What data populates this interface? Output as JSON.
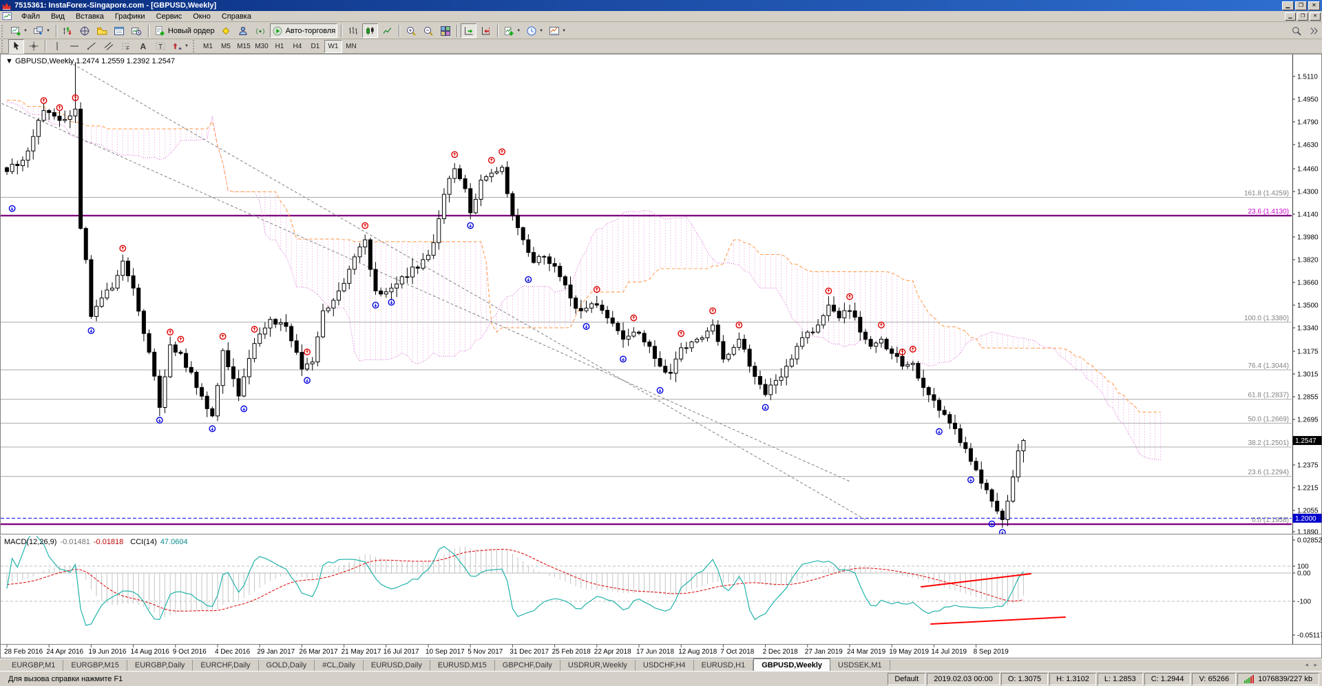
{
  "window": {
    "title": "7515361: InstaForex-Singapore.com - [GBPUSD,Weekly]",
    "buttons": [
      "minimize",
      "restore",
      "close"
    ]
  },
  "menu": {
    "items": [
      "Файл",
      "Вид",
      "Вставка",
      "Графики",
      "Сервис",
      "Окно",
      "Справка"
    ],
    "child_buttons": [
      "minimize",
      "restore",
      "close"
    ]
  },
  "toolbar_main": {
    "new_order_label": "Новый ордер",
    "auto_trading_label": "Авто-торговля",
    "items": [
      {
        "type": "grip"
      },
      {
        "type": "button",
        "name": "new-chart",
        "icon": "new-chart",
        "dropdown": true
      },
      {
        "type": "button",
        "name": "profiles",
        "icon": "profiles",
        "dropdown": true
      },
      {
        "type": "sep"
      },
      {
        "type": "button",
        "name": "market-watch",
        "icon": "market-watch"
      },
      {
        "type": "button",
        "name": "data-window",
        "icon": "data-window"
      },
      {
        "type": "button",
        "name": "navigator",
        "icon": "navigator"
      },
      {
        "type": "button",
        "name": "terminal",
        "icon": "terminal"
      },
      {
        "type": "button",
        "name": "strategy-tester",
        "icon": "tester"
      },
      {
        "type": "sep"
      },
      {
        "type": "button",
        "name": "new-order",
        "icon": "new-order",
        "label": "Новый ордер"
      },
      {
        "type": "button",
        "name": "metaeditor",
        "icon": "metaeditor"
      },
      {
        "type": "button",
        "name": "expert-advisors",
        "icon": "expert"
      },
      {
        "type": "button",
        "name": "signals",
        "icon": "signal"
      },
      {
        "type": "button",
        "name": "auto-trading",
        "icon": "autotrade",
        "label": "Авто-торговля",
        "pressed": true
      },
      {
        "type": "sep"
      },
      {
        "type": "button",
        "name": "bar-chart-mode",
        "icon": "bars"
      },
      {
        "type": "button",
        "name": "candlestick-mode",
        "icon": "candles",
        "pressed": true
      },
      {
        "type": "button",
        "name": "line-chart-mode",
        "icon": "line"
      },
      {
        "type": "sep"
      },
      {
        "type": "button",
        "name": "zoom-in",
        "icon": "zoom-in"
      },
      {
        "type": "button",
        "name": "zoom-out",
        "icon": "zoom-out"
      },
      {
        "type": "button",
        "name": "tile-windows",
        "icon": "tile"
      },
      {
        "type": "sep"
      },
      {
        "type": "button",
        "name": "auto-scroll",
        "icon": "autoscroll",
        "pressed": true
      },
      {
        "type": "button",
        "name": "chart-shift",
        "icon": "shift"
      },
      {
        "type": "sep"
      },
      {
        "type": "button",
        "name": "indicators-list",
        "icon": "indicators",
        "dropdown": true
      },
      {
        "type": "button",
        "name": "periods-list",
        "icon": "periods",
        "dropdown": true
      },
      {
        "type": "button",
        "name": "templates",
        "icon": "template",
        "dropdown": true
      },
      {
        "type": "spacer"
      },
      {
        "type": "button",
        "name": "search",
        "icon": "search"
      },
      {
        "type": "button",
        "name": "toolbar-overflow",
        "icon": "chevrons"
      }
    ]
  },
  "toolbar_drawing": {
    "items": [
      {
        "type": "grip"
      },
      {
        "type": "button",
        "name": "cursor",
        "icon": "cursor",
        "pressed": true
      },
      {
        "type": "button",
        "name": "crosshair",
        "icon": "crosshair"
      },
      {
        "type": "sep"
      },
      {
        "type": "button",
        "name": "vertical-line",
        "icon": "vline"
      },
      {
        "type": "button",
        "name": "horizontal-line",
        "icon": "hline"
      },
      {
        "type": "button",
        "name": "trendline",
        "icon": "trendline"
      },
      {
        "type": "button",
        "name": "equidistant-channel",
        "icon": "channel"
      },
      {
        "type": "button",
        "name": "fibonacci-retracement",
        "icon": "fibo"
      },
      {
        "type": "button",
        "name": "text",
        "icon": "text"
      },
      {
        "type": "button",
        "name": "text-label",
        "icon": "label"
      },
      {
        "type": "button",
        "name": "arrow-objects",
        "icon": "arrows",
        "dropdown": true
      },
      {
        "type": "grip"
      }
    ],
    "timeframes": [
      "M1",
      "M5",
      "M15",
      "M30",
      "H1",
      "H4",
      "D1",
      "W1",
      "MN"
    ],
    "active_timeframe": "W1"
  },
  "chart": {
    "symbol_label": "GBPUSD,Weekly",
    "ohlc_text": "1.2474 1.2559 1.2392 1.2547",
    "price_axis": {
      "ticks": [
        "1.5110",
        "1.4950",
        "1.4790",
        "1.4630",
        "1.4460",
        "1.4300",
        "1.4140",
        "1.3980",
        "1.3820",
        "1.3660",
        "1.3500",
        "1.3340",
        "1.3175",
        "1.3015",
        "1.2855",
        "1.2695",
        "1.2375",
        "1.2215",
        "1.2055",
        "1.1890"
      ],
      "tick_values": [
        1.511,
        1.495,
        1.479,
        1.463,
        1.446,
        1.43,
        1.414,
        1.398,
        1.382,
        1.366,
        1.35,
        1.334,
        1.3175,
        1.3015,
        1.2855,
        1.2695,
        1.2375,
        1.2215,
        1.2055,
        1.189
      ],
      "current_price_badge": {
        "value": "1.2547",
        "price": 1.2547,
        "bg": "#000000",
        "fg": "#ffffff"
      },
      "level_badge": {
        "value": "1.2000",
        "price": 1.2,
        "bg": "#0000CC",
        "fg": "#ffffff"
      }
    },
    "fib_levels": [
      {
        "label": "161.8 (1.4259)",
        "price": 1.4259,
        "kind": "gray"
      },
      {
        "label": "23.6 (1.4130)",
        "price": 1.413,
        "kind": "purple",
        "label_color": "#CC00CC"
      },
      {
        "label": "100.0 (1.3380)",
        "price": 1.338,
        "kind": "gray"
      },
      {
        "label": "76.4 (1.3044)",
        "price": 1.3044,
        "kind": "gray"
      },
      {
        "label": "61.8 (1.2837)",
        "price": 1.2837,
        "kind": "gray"
      },
      {
        "label": "50.0 (1.2669)",
        "price": 1.2669,
        "kind": "gray"
      },
      {
        "label": "38.2 (1.2501)",
        "price": 1.2501,
        "kind": "gray"
      },
      {
        "label": "23.6 (1.2294)",
        "price": 1.2294,
        "kind": "gray"
      },
      {
        "label": "0.0 (1.1958)",
        "price": 1.1958,
        "kind": "purple",
        "label_color": "#808080"
      }
    ],
    "blue_level_line": {
      "price": 1.2,
      "color": "#0000EE",
      "style": "dashed"
    },
    "date_axis": [
      "28 Feb 2016",
      "24 Apr 2016",
      "19 Jun 2016",
      "14 Aug 2016",
      "9 Oct 2016",
      "4 Dec 2016",
      "29 Jan 2017",
      "26 Mar 2017",
      "21 May 2017",
      "16 Jul 2017",
      "10 Sep 2017",
      "5 Nov 2017",
      "31 Dec 2017",
      "25 Feb 2018",
      "22 Apr 2018",
      "17 Jun 2018",
      "12 Aug 2018",
      "7 Oct 2018",
      "2 Dec 2018",
      "27 Jan 2019",
      "24 Mar 2019",
      "19 May 2019",
      "14 Jul 2019",
      "8 Sep 2019"
    ],
    "chart_data": {
      "type": "candlestick",
      "symbol": "GBPUSD",
      "timeframe": "Weekly",
      "ylim": [
        1.186,
        1.525
      ],
      "ohlc_current": {
        "open": 1.2474,
        "high": 1.2559,
        "low": 1.2392,
        "close": 1.2547
      },
      "weeks": 194,
      "pre_anchors": [
        [
          -60,
          1.508
        ],
        [
          -50,
          1.478
        ],
        [
          -42,
          1.496
        ],
        [
          -34,
          1.505
        ],
        [
          -26,
          1.482
        ],
        [
          -18,
          1.462
        ],
        [
          -10,
          1.44
        ],
        [
          -5,
          1.448
        ]
      ],
      "anchors": [
        [
          0,
          1.444
        ],
        [
          3,
          1.452
        ],
        [
          7,
          1.487
        ],
        [
          10,
          1.48
        ],
        [
          13,
          1.488
        ],
        [
          14,
          1.404
        ],
        [
          15,
          1.382
        ],
        [
          16,
          1.342
        ],
        [
          18,
          1.355
        ],
        [
          20,
          1.362
        ],
        [
          22,
          1.381
        ],
        [
          24,
          1.362
        ],
        [
          26,
          1.33
        ],
        [
          28,
          1.3
        ],
        [
          29,
          1.278
        ],
        [
          31,
          1.322
        ],
        [
          33,
          1.316
        ],
        [
          36,
          1.292
        ],
        [
          39,
          1.272
        ],
        [
          41,
          1.318
        ],
        [
          44,
          1.286
        ],
        [
          47,
          1.323
        ],
        [
          50,
          1.34
        ],
        [
          53,
          1.335
        ],
        [
          56,
          1.305
        ],
        [
          58,
          1.31
        ],
        [
          60,
          1.346
        ],
        [
          63,
          1.36
        ],
        [
          66,
          1.384
        ],
        [
          68,
          1.396
        ],
        [
          70,
          1.36
        ],
        [
          73,
          1.362
        ],
        [
          75,
          1.37
        ],
        [
          78,
          1.376
        ],
        [
          81,
          1.394
        ],
        [
          83,
          1.428
        ],
        [
          85,
          1.446
        ],
        [
          87,
          1.432
        ],
        [
          88,
          1.415
        ],
        [
          90,
          1.438
        ],
        [
          92,
          1.443
        ],
        [
          94,
          1.447
        ],
        [
          96,
          1.413
        ],
        [
          98,
          1.396
        ],
        [
          100,
          1.38
        ],
        [
          102,
          1.384
        ],
        [
          105,
          1.37
        ],
        [
          107,
          1.355
        ],
        [
          109,
          1.346
        ],
        [
          112,
          1.35
        ],
        [
          114,
          1.341
        ],
        [
          117,
          1.326
        ],
        [
          119,
          1.331
        ],
        [
          122,
          1.321
        ],
        [
          124,
          1.307
        ],
        [
          126,
          1.302
        ],
        [
          128,
          1.32
        ],
        [
          131,
          1.326
        ],
        [
          134,
          1.336
        ],
        [
          136,
          1.312
        ],
        [
          139,
          1.326
        ],
        [
          141,
          1.307
        ],
        [
          144,
          1.287
        ],
        [
          146,
          1.297
        ],
        [
          148,
          1.307
        ],
        [
          150,
          1.321
        ],
        [
          152,
          1.331
        ],
        [
          154,
          1.336
        ],
        [
          156,
          1.35
        ],
        [
          158,
          1.341
        ],
        [
          160,
          1.346
        ],
        [
          162,
          1.331
        ],
        [
          164,
          1.321
        ],
        [
          166,
          1.326
        ],
        [
          168,
          1.316
        ],
        [
          170,
          1.307
        ],
        [
          172,
          1.309
        ],
        [
          174,
          1.292
        ],
        [
          176,
          1.283
        ],
        [
          178,
          1.273
        ],
        [
          180,
          1.263
        ],
        [
          182,
          1.249
        ],
        [
          184,
          1.234
        ],
        [
          186,
          1.22
        ],
        [
          187,
          1.212
        ],
        [
          188,
          1.205
        ],
        [
          189,
          1.199
        ],
        [
          190,
          1.212
        ],
        [
          191,
          1.229
        ],
        [
          192,
          1.2474
        ],
        [
          193,
          1.2547
        ]
      ],
      "signals": {
        "sell": [
          [
            7,
            1.494
          ],
          [
            10,
            1.489
          ],
          [
            13,
            1.496
          ],
          [
            22,
            1.39
          ],
          [
            31,
            1.331
          ],
          [
            33,
            1.326
          ],
          [
            41,
            1.328
          ],
          [
            47,
            1.333
          ],
          [
            57,
            1.317
          ],
          [
            68,
            1.406
          ],
          [
            85,
            1.456
          ],
          [
            92,
            1.452
          ],
          [
            94,
            1.458
          ],
          [
            112,
            1.361
          ],
          [
            119,
            1.341
          ],
          [
            128,
            1.33
          ],
          [
            134,
            1.346
          ],
          [
            139,
            1.336
          ],
          [
            156,
            1.36
          ],
          [
            160,
            1.356
          ],
          [
            166,
            1.336
          ],
          [
            170,
            1.317
          ],
          [
            172,
            1.319
          ]
        ],
        "buy": [
          [
            1,
            1.418
          ],
          [
            16,
            1.332
          ],
          [
            29,
            1.269
          ],
          [
            39,
            1.263
          ],
          [
            45,
            1.277
          ],
          [
            57,
            1.297
          ],
          [
            70,
            1.35
          ],
          [
            73,
            1.352
          ],
          [
            88,
            1.406
          ],
          [
            99,
            1.368
          ],
          [
            110,
            1.335
          ],
          [
            117,
            1.312
          ],
          [
            124,
            1.29
          ],
          [
            144,
            1.278
          ],
          [
            177,
            1.261
          ],
          [
            183,
            1.227
          ],
          [
            187,
            1.196
          ],
          [
            189,
            1.19
          ]
        ]
      },
      "trendlines": [
        [
          -1,
          1.492,
          160,
          1.226
        ],
        [
          11,
          1.523,
          163,
          1.199
        ]
      ],
      "indicators": {
        "ichimoku_params": "9, 26, 52",
        "macd_params": [
          12,
          26,
          9
        ],
        "cci_period": 14
      }
    }
  },
  "indicator_panel": {
    "macd_name": "MACD(12,26,9)",
    "macd_value": "-0.01481",
    "signal_value": "-0.01818",
    "cci_name": "CCI(14)",
    "cci_value": "47.0604",
    "axis": {
      "top": "0.02852",
      "plus100": "100",
      "zero": "0.00",
      "minus100": "-100",
      "bottom": "-0.05117"
    },
    "red_trendlines": [
      [
        1338,
        774,
        1497,
        755
      ],
      [
        1352,
        828,
        1547,
        818
      ]
    ]
  },
  "tabs": {
    "items": [
      "EURGBP,M1",
      "EURGBP,M15",
      "EURGBP,Daily",
      "EURCHF,Daily",
      "GOLD,Daily",
      "#CL,Daily",
      "EURUSD,Daily",
      "EURUSD,M15",
      "GBPCHF,Daily",
      "USDRUR,Weekly",
      "USDCHF,H4",
      "EURUSD,H1",
      "GBPUSD,Weekly",
      "USDSEK,M1"
    ],
    "active": "GBPUSD,Weekly",
    "scroll_arrows": "◂ ▸"
  },
  "status_bar": {
    "help": "Для вызова справки нажмите F1",
    "profile": "Default",
    "bar_time": "2019.02.03 00:00",
    "open": "O: 1.3075",
    "high": "H: 1.3102",
    "low": "L: 1.2853",
    "close": "C: 1.2944",
    "volume": "V: 65266",
    "traffic": "1076839/227 kb"
  },
  "colors": {
    "cloud_violet": "#DA70D6",
    "cloud_orange": "#FFA054",
    "fib_gray": "#A8A8A8",
    "purple_line": "#800080",
    "blue_line": "#0000EE",
    "cci_teal": "#20B2AA",
    "macd_signal_red": "#DD0000",
    "histogram_gray": "#C4C4C4",
    "sell_marker": "#DD0000",
    "buy_marker": "#0000DD"
  }
}
